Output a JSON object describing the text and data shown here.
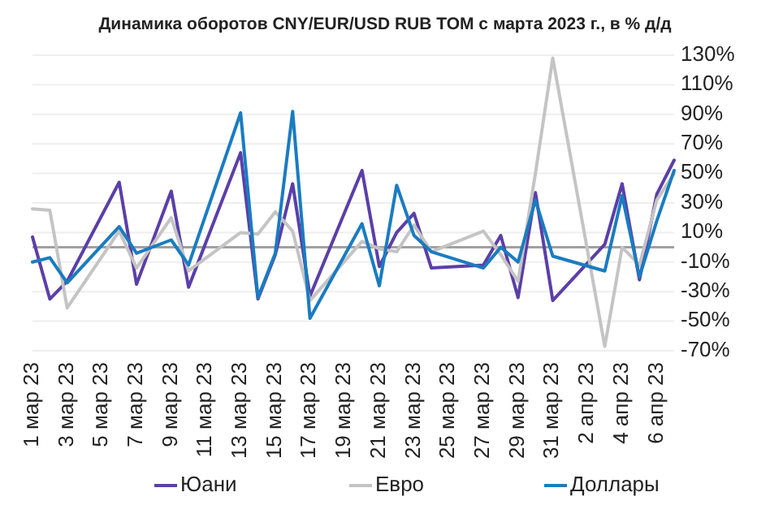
{
  "chart_data": {
    "type": "line",
    "title": "Динамика оборотов CNY/EUR/USD RUB TOM с марта 2023 г., в % д/д",
    "x": [
      "2023-03-01",
      "2023-03-02",
      "2023-03-03",
      "2023-03-06",
      "2023-03-07",
      "2023-03-09",
      "2023-03-10",
      "2023-03-13",
      "2023-03-14",
      "2023-03-15",
      "2023-03-16",
      "2023-03-17",
      "2023-03-20",
      "2023-03-21",
      "2023-03-22",
      "2023-03-23",
      "2023-03-24",
      "2023-03-27",
      "2023-03-28",
      "2023-03-29",
      "2023-03-30",
      "2023-03-31",
      "2023-04-03",
      "2023-04-04",
      "2023-04-05",
      "2023-04-06",
      "2023-04-07"
    ],
    "series": [
      {
        "name": "Юани",
        "color": "#5b3fa8",
        "values": [
          7,
          -35,
          -23,
          44,
          -25,
          38,
          -27,
          64,
          -35,
          -5,
          43,
          -33,
          52,
          -13,
          10,
          23,
          -14,
          -12,
          8,
          -34,
          37,
          -36,
          2,
          43,
          -22,
          36,
          59
        ]
      },
      {
        "name": "Евро",
        "color": "#c4c4c4",
        "values": [
          26,
          25,
          -41,
          11,
          -14,
          20,
          -16,
          10,
          9,
          24,
          11,
          -36,
          4,
          -1,
          -3,
          15,
          -3,
          11,
          -5,
          -23,
          50,
          128,
          -67,
          0,
          -12,
          32,
          50
        ]
      },
      {
        "name": "Доллары",
        "color": "#1a7cc1",
        "values": [
          -10,
          -7,
          -24,
          14,
          -4,
          5,
          -12,
          91,
          -34,
          -4,
          92,
          -48,
          16,
          -26,
          42,
          8,
          -3,
          -14,
          0,
          -10,
          32,
          -6,
          -16,
          35,
          -20,
          18,
          52
        ]
      }
    ],
    "xlim": [
      "2023-03-01",
      "2023-04-07"
    ],
    "xticks": [
      {
        "value": "2023-03-01",
        "label": "1 мар 23"
      },
      {
        "value": "2023-03-03",
        "label": "3 мар 23"
      },
      {
        "value": "2023-03-05",
        "label": "5 мар 23"
      },
      {
        "value": "2023-03-07",
        "label": "7 мар 23"
      },
      {
        "value": "2023-03-09",
        "label": "9 мар 23"
      },
      {
        "value": "2023-03-11",
        "label": "11 мар 23"
      },
      {
        "value": "2023-03-13",
        "label": "13 мар 23"
      },
      {
        "value": "2023-03-15",
        "label": "15 мар 23"
      },
      {
        "value": "2023-03-17",
        "label": "17 мар 23"
      },
      {
        "value": "2023-03-19",
        "label": "19 мар 23"
      },
      {
        "value": "2023-03-21",
        "label": "21 мар 23"
      },
      {
        "value": "2023-03-23",
        "label": "23 мар 23"
      },
      {
        "value": "2023-03-25",
        "label": "25 мар 23"
      },
      {
        "value": "2023-03-27",
        "label": "27 мар 23"
      },
      {
        "value": "2023-03-29",
        "label": "29 мар 23"
      },
      {
        "value": "2023-03-31",
        "label": "31 мар 23"
      },
      {
        "value": "2023-04-02",
        "label": "2 апр 23"
      },
      {
        "value": "2023-04-04",
        "label": "4 апр 23"
      },
      {
        "value": "2023-04-06",
        "label": "6 апр 23"
      }
    ],
    "ylim": [
      -70,
      130
    ],
    "yticks": [
      {
        "value": 130,
        "label": "130%"
      },
      {
        "value": 110,
        "label": "110%"
      },
      {
        "value": 90,
        "label": "90%"
      },
      {
        "value": 70,
        "label": "70%"
      },
      {
        "value": 50,
        "label": "50%"
      },
      {
        "value": 30,
        "label": "30%"
      },
      {
        "value": 10,
        "label": "10%"
      },
      {
        "value": -10,
        "label": "-10%"
      },
      {
        "value": -30,
        "label": "-30%"
      },
      {
        "value": -50,
        "label": "-50%"
      },
      {
        "value": -70,
        "label": "-70%"
      }
    ],
    "ref_lines": [
      {
        "axis": "y",
        "value": 0,
        "color": "#a0a0a0"
      }
    ],
    "grid": "y",
    "legend": "bottom",
    "marker": "none",
    "line_style": "solid"
  }
}
